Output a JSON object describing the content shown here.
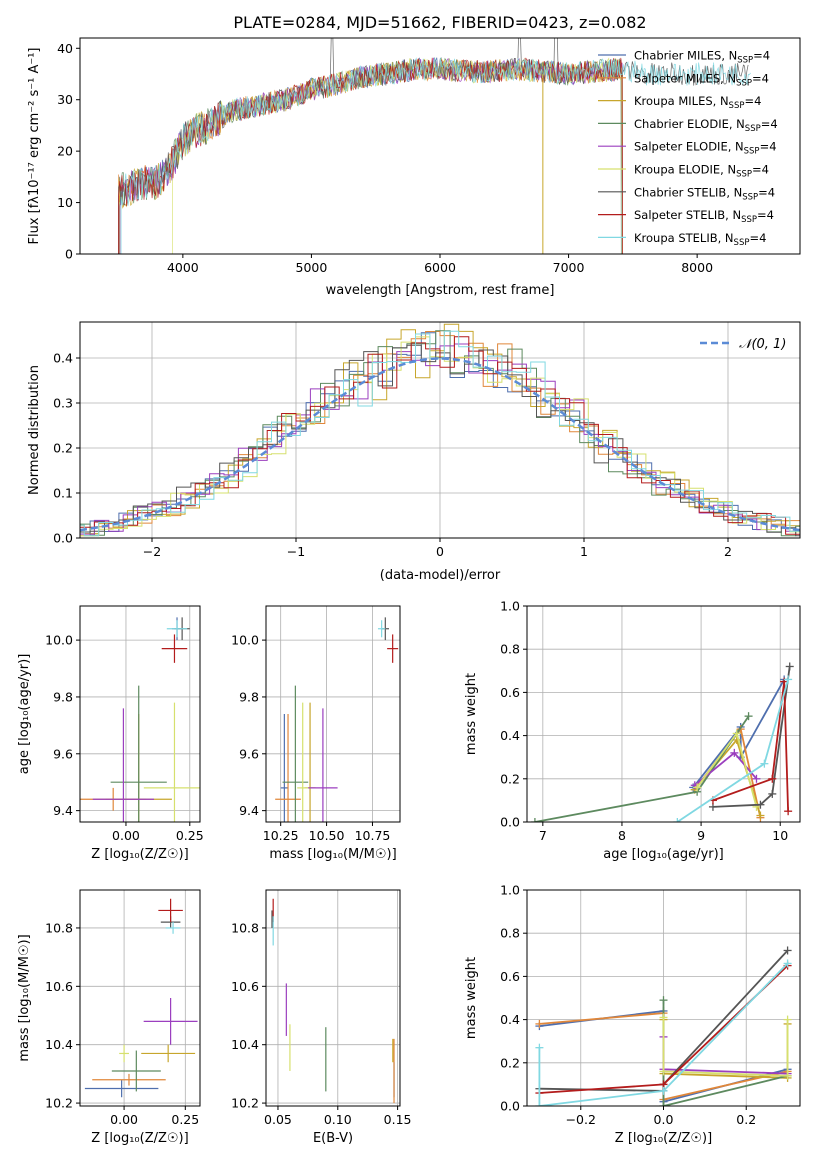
{
  "figure_title": "PLATE=0284, MJD=51662, FIBERID=0423, z=0.082",
  "models": [
    {
      "name": "Chabrier MILES",
      "color": "#4f6fae"
    },
    {
      "name": "Salpeter MILES",
      "color": "#e0873a"
    },
    {
      "name": "Kroupa MILES",
      "color": "#c7a62c"
    },
    {
      "name": "Chabrier ELODIE",
      "color": "#5d8a5f"
    },
    {
      "name": "Salpeter ELODIE",
      "color": "#9b3fbf"
    },
    {
      "name": "Kroupa ELODIE",
      "color": "#d6e06e"
    },
    {
      "name": "Chabrier STELIB",
      "color": "#555555"
    },
    {
      "name": "Salpeter STELIB",
      "color": "#b31c1c"
    },
    {
      "name": "Kroupa STELIB",
      "color": "#80d8e2"
    }
  ],
  "chart_data": [
    {
      "id": "spectrum",
      "type": "line",
      "title": "PLATE=0284, MJD=51662, FIBERID=0423, z=0.082",
      "xlabel": "wavelength [Angstrom, rest frame]",
      "ylabel": "Flux [fλ10⁻¹⁷ erg cm⁻² s⁻¹ A⁻¹]",
      "xlim": [
        3200,
        8800
      ],
      "ylim": [
        0,
        42
      ],
      "xticks": [
        4000,
        5000,
        6000,
        7000,
        8000
      ],
      "yticks": [
        0,
        10,
        20,
        30,
        40
      ],
      "legend_position": "top-right",
      "legend_entries": [
        "Chabrier MILES, N_SSP=4",
        "Salpeter MILES, N_SSP=4",
        "Kroupa MILES, N_SSP=4",
        "Chabrier ELODIE, N_SSP=4",
        "Salpeter ELODIE, N_SSP=4",
        "Kroupa ELODIE, N_SSP=4",
        "Chabrier STELIB, N_SSP=4",
        "Salpeter STELIB, N_SSP=4",
        "Kroupa STELIB, N_SSP=4"
      ],
      "continuum": {
        "wavelength": [
          3500,
          3600,
          3700,
          3800,
          3900,
          4000,
          4100,
          4200,
          4400,
          4600,
          4800,
          5000,
          5200,
          5400,
          5600,
          5800,
          6000,
          6200,
          6400,
          6600,
          6800,
          7000,
          7200,
          7400,
          7600
        ],
        "flux": [
          12,
          13,
          14,
          14,
          17,
          22,
          24,
          25,
          28,
          29,
          30,
          32,
          33,
          34.5,
          35,
          36,
          36,
          35.5,
          35.5,
          36,
          35.5,
          35,
          35.5,
          36,
          35
        ]
      }
    },
    {
      "id": "residuals",
      "type": "bar",
      "xlabel": "(data-model)/error",
      "ylabel": "Normed distribution",
      "xlim": [
        -2.5,
        2.5
      ],
      "ylim": [
        0,
        0.48
      ],
      "xticks": [
        -2,
        -1,
        0,
        1,
        2
      ],
      "yticks": [
        0.0,
        0.1,
        0.2,
        0.3,
        0.4
      ],
      "grid": true,
      "legend_position": "top-right",
      "reference_curve": "N(0,1)",
      "reference_label": "𝒩(0, 1)",
      "bin_width": 0.1
    },
    {
      "id": "age_vs_Z",
      "type": "scatter",
      "xlabel": "Z [log₁₀(Z/Z☉)]",
      "ylabel": "age  [log₁₀(age/yr)]",
      "xlim": [
        -0.18,
        0.29
      ],
      "ylim": [
        9.36,
        10.12
      ],
      "xticks": [
        0.0,
        0.25
      ],
      "yticks": [
        9.4,
        9.6,
        9.8,
        10.0
      ],
      "grid": true,
      "points": [
        {
          "model": "Chabrier MILES",
          "x": 0.2,
          "xerr": 0.02,
          "y": 10.04,
          "yerr": 0.04
        },
        {
          "model": "Salpeter MILES",
          "x": -0.05,
          "xerr": 0.13,
          "y": 9.44,
          "yerr": 0.04
        },
        {
          "model": "Kroupa MILES",
          "x": 0.05,
          "xerr": 0.13,
          "y": 9.44,
          "yerr": 0.3
        },
        {
          "model": "Chabrier ELODIE",
          "x": 0.05,
          "xerr": 0.11,
          "y": 9.5,
          "yerr": 0.34
        },
        {
          "model": "Salpeter ELODIE",
          "x": -0.01,
          "xerr": 0.12,
          "y": 9.44,
          "yerr": 0.32
        },
        {
          "model": "Kroupa ELODIE",
          "x": 0.19,
          "xerr": 0.12,
          "y": 9.48,
          "yerr": 0.3
        },
        {
          "model": "Chabrier STELIB",
          "x": 0.22,
          "xerr": 0.03,
          "y": 10.04,
          "yerr": 0.04
        },
        {
          "model": "Salpeter STELIB",
          "x": 0.19,
          "xerr": 0.05,
          "y": 9.97,
          "yerr": 0.05
        },
        {
          "model": "Kroupa STELIB",
          "x": 0.2,
          "xerr": 0.04,
          "y": 10.04,
          "yerr": 0.03
        }
      ]
    },
    {
      "id": "age_vs_mass",
      "type": "scatter",
      "xlabel": "mass [log₁₀(M/M☉)]",
      "xlim": [
        10.17,
        10.9
      ],
      "ylim": [
        9.36,
        10.12
      ],
      "xticks": [
        10.25,
        10.5,
        10.75
      ],
      "yticks": [
        9.4,
        9.6,
        9.8,
        10.0
      ],
      "grid": true,
      "points": [
        {
          "model": "Chabrier MILES",
          "x": 10.27,
          "xerr": 0.02,
          "y": 9.48,
          "yerr": 0.26
        },
        {
          "model": "Salpeter MILES",
          "x": 10.29,
          "xerr": 0.07,
          "y": 9.44,
          "yerr": 0.3
        },
        {
          "model": "Kroupa MILES",
          "x": 10.41,
          "xerr": 0.03,
          "y": 9.48,
          "yerr": 0.3
        },
        {
          "model": "Chabrier ELODIE",
          "x": 10.33,
          "xerr": 0.07,
          "y": 9.5,
          "yerr": 0.34
        },
        {
          "model": "Salpeter ELODIE",
          "x": 10.48,
          "xerr": 0.08,
          "y": 9.48,
          "yerr": 0.28
        },
        {
          "model": "Kroupa ELODIE",
          "x": 10.37,
          "xerr": 0.03,
          "y": 9.48,
          "yerr": 0.3
        },
        {
          "model": "Chabrier STELIB",
          "x": 10.82,
          "xerr": 0.02,
          "y": 10.04,
          "yerr": 0.04
        },
        {
          "model": "Salpeter STELIB",
          "x": 10.86,
          "xerr": 0.03,
          "y": 9.97,
          "yerr": 0.05
        },
        {
          "model": "Kroupa STELIB",
          "x": 10.8,
          "xerr": 0.02,
          "y": 10.04,
          "yerr": 0.03
        }
      ]
    },
    {
      "id": "weight_vs_age",
      "type": "line",
      "xlabel": "age  [log₁₀(age/yr)]",
      "ylabel": "mass weight",
      "xlim": [
        6.8,
        10.25
      ],
      "ylim": [
        0,
        1.0
      ],
      "xticks": [
        7,
        8,
        9,
        10
      ],
      "yticks": [
        0.0,
        0.2,
        0.4,
        0.6,
        0.8,
        1.0
      ],
      "grid": true,
      "series": [
        {
          "model": "Chabrier MILES",
          "x": [
            8.9,
            9.5,
            9.5,
            10.05
          ],
          "y": [
            0.16,
            0.44,
            0.3,
            0.66
          ]
        },
        {
          "model": "Salpeter MILES",
          "x": [
            8.92,
            9.5,
            9.75
          ],
          "y": [
            0.15,
            0.43,
            0.02
          ]
        },
        {
          "model": "Kroupa MILES",
          "x": [
            8.92,
            9.45,
            9.75
          ],
          "y": [
            0.15,
            0.38,
            0.03
          ]
        },
        {
          "model": "Chabrier ELODIE",
          "x": [
            6.9,
            8.95,
            9.6
          ],
          "y": [
            0.0,
            0.14,
            0.49
          ]
        },
        {
          "model": "Salpeter ELODIE",
          "x": [
            8.92,
            9.42,
            9.7
          ],
          "y": [
            0.17,
            0.32,
            0.2
          ]
        },
        {
          "model": "Kroupa ELODIE",
          "x": [
            8.95,
            9.45,
            9.7
          ],
          "y": [
            0.16,
            0.41,
            0.07
          ]
        },
        {
          "model": "Chabrier STELIB",
          "x": [
            9.15,
            9.75,
            9.9,
            10.12
          ],
          "y": [
            0.07,
            0.08,
            0.13,
            0.72
          ]
        },
        {
          "model": "Salpeter STELIB",
          "x": [
            9.15,
            9.9,
            10.05,
            10.1
          ],
          "y": [
            0.1,
            0.2,
            0.65,
            0.05
          ]
        },
        {
          "model": "Kroupa STELIB",
          "x": [
            8.7,
            9.8,
            10.1
          ],
          "y": [
            0.0,
            0.27,
            0.66
          ]
        }
      ]
    },
    {
      "id": "mass_vs_Z",
      "type": "scatter",
      "xlabel": "Z [log₁₀(Z/Z☉)]",
      "ylabel": "mass [log₁₀(M/M☉)]",
      "xlim": [
        -0.18,
        0.31
      ],
      "ylim": [
        10.19,
        10.93
      ],
      "xticks": [
        0.0,
        0.25
      ],
      "yticks": [
        10.2,
        10.4,
        10.6,
        10.8
      ],
      "grid": true,
      "points": [
        {
          "model": "Chabrier MILES",
          "x": -0.01,
          "xerr": 0.15,
          "y": 10.25,
          "yerr": 0.03
        },
        {
          "model": "Salpeter MILES",
          "x": 0.02,
          "xerr": 0.15,
          "y": 10.28,
          "yerr": 0.02
        },
        {
          "model": "Kroupa MILES",
          "x": 0.18,
          "xerr": 0.11,
          "y": 10.37,
          "yerr": 0.03
        },
        {
          "model": "Chabrier ELODIE",
          "x": 0.05,
          "xerr": 0.1,
          "y": 10.31,
          "yerr": 0.07
        },
        {
          "model": "Salpeter ELODIE",
          "x": 0.19,
          "xerr": 0.11,
          "y": 10.48,
          "yerr": 0.08
        },
        {
          "model": "Kroupa ELODIE",
          "x": 0.0,
          "xerr": 0.02,
          "y": 10.37,
          "yerr": 0.03
        },
        {
          "model": "Chabrier STELIB",
          "x": 0.19,
          "xerr": 0.04,
          "y": 10.82,
          "yerr": 0.02
        },
        {
          "model": "Salpeter STELIB",
          "x": 0.19,
          "xerr": 0.05,
          "y": 10.86,
          "yerr": 0.04
        },
        {
          "model": "Kroupa STELIB",
          "x": 0.2,
          "xerr": 0.03,
          "y": 10.8,
          "yerr": 0.02
        }
      ]
    },
    {
      "id": "mass_vs_ebv",
      "type": "scatter",
      "xlabel": "E(B-V)",
      "xlim": [
        0.04,
        0.152
      ],
      "ylim": [
        10.19,
        10.93
      ],
      "xticks": [
        0.05,
        0.1,
        0.15
      ],
      "yticks": [
        10.2,
        10.4,
        10.6,
        10.8
      ],
      "grid": true,
      "points": [
        {
          "model": "Chabrier MILES",
          "x": 0.147,
          "y": 10.28,
          "yerr": 0.06
        },
        {
          "model": "Salpeter MILES",
          "x": 0.147,
          "y": 10.31,
          "yerr": 0.11
        },
        {
          "model": "Kroupa MILES",
          "x": 0.146,
          "y": 10.38,
          "yerr": 0.04
        },
        {
          "model": "Chabrier ELODIE",
          "x": 0.09,
          "y": 10.35,
          "yerr": 0.11
        },
        {
          "model": "Salpeter ELODIE",
          "x": 0.057,
          "y": 10.52,
          "yerr": 0.09
        },
        {
          "model": "Kroupa ELODIE",
          "x": 0.06,
          "y": 10.39,
          "yerr": 0.08
        },
        {
          "model": "Chabrier STELIB",
          "x": 0.045,
          "y": 10.83,
          "yerr": 0.03
        },
        {
          "model": "Salpeter STELIB",
          "x": 0.046,
          "y": 10.86,
          "yerr": 0.04
        },
        {
          "model": "Kroupa STELIB",
          "x": 0.046,
          "y": 10.79,
          "yerr": 0.05
        }
      ]
    },
    {
      "id": "weight_vs_Z",
      "type": "line",
      "xlabel": "Z [log₁₀(Z/Z☉)]",
      "ylabel": "mass weight",
      "xlim": [
        -0.33,
        0.33
      ],
      "ylim": [
        0,
        1.0
      ],
      "xticks": [
        -0.2,
        0.0,
        0.2
      ],
      "yticks": [
        0.0,
        0.2,
        0.4,
        0.6,
        0.8,
        1.0
      ],
      "grid": true,
      "series": [
        {
          "model": "Chabrier MILES",
          "x": [
            -0.3,
            0.0,
            0.0,
            0.3
          ],
          "y": [
            0.37,
            0.44,
            0.02,
            0.17
          ]
        },
        {
          "model": "Salpeter MILES",
          "x": [
            -0.3,
            0.0,
            0.0,
            0.3
          ],
          "y": [
            0.38,
            0.43,
            0.03,
            0.16
          ]
        },
        {
          "model": "Kroupa MILES",
          "x": [
            0.0,
            0.0,
            0.3,
            0.3
          ],
          "y": [
            0.4,
            0.15,
            0.13,
            0.38
          ]
        },
        {
          "model": "Chabrier ELODIE",
          "x": [
            0.0,
            0.0,
            0.3
          ],
          "y": [
            0.49,
            0.0,
            0.14
          ]
        },
        {
          "model": "Salpeter ELODIE",
          "x": [
            0.0,
            0.0,
            0.3
          ],
          "y": [
            0.32,
            0.17,
            0.15
          ]
        },
        {
          "model": "Kroupa ELODIE",
          "x": [
            0.0,
            0.0,
            0.3,
            0.3
          ],
          "y": [
            0.41,
            0.16,
            0.14,
            0.4
          ]
        },
        {
          "model": "Chabrier STELIB",
          "x": [
            -0.3,
            0.0,
            0.0,
            0.3
          ],
          "y": [
            0.08,
            0.07,
            0.1,
            0.72
          ]
        },
        {
          "model": "Salpeter STELIB",
          "x": [
            -0.3,
            0.0,
            0.3
          ],
          "y": [
            0.06,
            0.1,
            0.65
          ]
        },
        {
          "model": "Kroupa STELIB",
          "x": [
            -0.3,
            -0.3,
            0.0,
            0.3
          ],
          "y": [
            0.27,
            0.0,
            0.07,
            0.66
          ]
        }
      ]
    }
  ]
}
